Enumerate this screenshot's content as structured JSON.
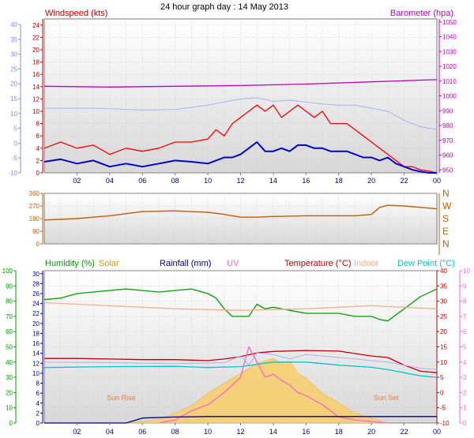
{
  "header": {
    "title": "24 hour graph day : 14 May 2013"
  },
  "chart_data": [
    {
      "type": "line",
      "panel": "wind",
      "x_ticks": [
        "02",
        "04",
        "06",
        "08",
        "10",
        "12",
        "14",
        "16",
        "18",
        "20",
        "22",
        "00"
      ],
      "xlim": [
        0,
        24
      ],
      "grid": true,
      "left_axis": {
        "label": "Windspeed (kts)",
        "ticks": [
          0,
          2,
          4,
          6,
          8,
          10,
          12,
          14,
          16,
          18,
          20,
          22,
          24
        ],
        "ylim": [
          0,
          25
        ]
      },
      "outer_left_axis": {
        "ticks": [
          -10,
          -5,
          0,
          5,
          10,
          15,
          20,
          25,
          30,
          35,
          40
        ]
      },
      "right_axis": {
        "label": "Barometer (hpa)",
        "ticks": [
          950,
          960,
          970,
          980,
          990,
          1000,
          1010,
          1020,
          1030,
          1040,
          1050
        ],
        "ylim": [
          948,
          1052
        ]
      },
      "series": [
        {
          "name": "Barometer (hpa)",
          "axis": "right",
          "color": "#c000c0",
          "x": [
            0,
            4,
            8,
            12,
            16,
            20,
            24
          ],
          "y": [
            1006.5,
            1006,
            1006.5,
            1007,
            1008,
            1009.5,
            1011
          ]
        },
        {
          "axis": "left",
          "color": "#a8b4f0",
          "style": "light",
          "x": [
            0,
            3,
            6,
            8,
            10,
            11,
            12,
            13,
            14,
            15,
            16,
            17,
            18,
            19,
            20,
            21,
            22,
            23,
            24
          ],
          "y": [
            10.5,
            10.5,
            10.2,
            10.3,
            11,
            11.5,
            12,
            12.2,
            11.6,
            11.8,
            11.5,
            11.2,
            11,
            11,
            10.5,
            10,
            8.5,
            7.5,
            7
          ]
        },
        {
          "axis": "left",
          "color": "#ff0000",
          "x": [
            0,
            1,
            2,
            3,
            4,
            5,
            6,
            7,
            8,
            9,
            10,
            10.5,
            11,
            11.5,
            12,
            12.5,
            13,
            13.5,
            14,
            14.5,
            15,
            15.5,
            16,
            16.5,
            17,
            17.5,
            18,
            18.5,
            19,
            19.5,
            20,
            20.5,
            21,
            21.5,
            22,
            22.5,
            23,
            23.5,
            24
          ],
          "y": [
            4,
            5,
            4,
            4.5,
            3,
            4,
            3.5,
            4,
            5,
            5,
            5.5,
            7,
            6,
            8,
            9,
            10,
            11,
            10,
            11,
            9,
            10,
            11,
            10,
            9,
            10,
            8,
            8,
            8,
            7,
            6,
            5,
            4,
            3,
            2,
            1,
            1,
            0.5,
            0.3,
            0
          ]
        },
        {
          "axis": "left",
          "color": "#0000cc",
          "x": [
            0,
            1,
            2,
            3,
            4,
            5,
            6,
            7,
            8,
            9,
            10,
            10.5,
            11,
            11.5,
            12,
            12.5,
            13,
            13.5,
            14,
            14.5,
            15,
            15.5,
            16,
            16.5,
            17,
            17.5,
            18,
            18.5,
            19,
            19.5,
            20,
            20.5,
            21,
            21.5,
            22,
            22.5,
            23,
            23.5,
            24
          ],
          "y": [
            1.8,
            2.2,
            1.5,
            2,
            1,
            1.5,
            1,
            1.5,
            2,
            1.8,
            1.5,
            2,
            2.5,
            2.5,
            3,
            4,
            5,
            3.5,
            3.5,
            4,
            3.5,
            4.5,
            4.5,
            4,
            4,
            3.5,
            3.5,
            3.5,
            3,
            2.5,
            2.5,
            2,
            2.5,
            1.5,
            1,
            0.5,
            0.2,
            0,
            0
          ]
        }
      ]
    },
    {
      "type": "line",
      "panel": "wind_direction",
      "xlim": [
        0,
        24
      ],
      "grid": true,
      "left_axis": {
        "ticks": [
          0,
          90,
          180,
          270,
          360
        ],
        "ylim": [
          0,
          360
        ]
      },
      "right_axis": {
        "ticks": [
          "N",
          "W",
          "S",
          "E",
          "N"
        ]
      },
      "series": [
        {
          "axis": "left",
          "color": "#c06000",
          "x": [
            0,
            2,
            4,
            6,
            8,
            10,
            11,
            12,
            13,
            14,
            16,
            18,
            19,
            20,
            20.5,
            21,
            22,
            24
          ],
          "y": [
            170,
            180,
            200,
            230,
            235,
            225,
            210,
            190,
            190,
            195,
            200,
            200,
            200,
            210,
            260,
            275,
            270,
            250
          ]
        }
      ]
    },
    {
      "type": "line",
      "panel": "environment",
      "x_ticks": [
        "02",
        "04",
        "06",
        "08",
        "10",
        "12",
        "14",
        "16",
        "18",
        "20",
        "22",
        "00"
      ],
      "xlim": [
        0,
        24
      ],
      "grid": true,
      "legend": [
        {
          "label": "Humidity (%)",
          "color": "#00a000"
        },
        {
          "label": "Solar",
          "color": "#c8a000"
        },
        {
          "label": "Rainfall (mm)",
          "color": "#000080"
        },
        {
          "label": "UV",
          "color": "#ff66cc"
        },
        {
          "label": "Temperature (°C)",
          "color": "#c00000"
        },
        {
          "label": "Indoor",
          "color": "#f0b090"
        },
        {
          "label": "Dew Point (°C)",
          "color": "#00c8c8"
        }
      ],
      "axes": {
        "humidity": {
          "ticks": [
            0,
            10,
            20,
            30,
            40,
            50,
            60,
            70,
            80,
            90,
            100
          ],
          "ylim": [
            0,
            100
          ]
        },
        "rainfall": {
          "ticks": [
            0,
            2,
            4,
            6,
            8,
            10,
            12,
            14,
            16,
            18,
            20,
            22,
            24,
            26,
            28,
            30
          ],
          "ylim": [
            0,
            30.6
          ]
        },
        "temperature": {
          "ticks": [
            -10,
            -5,
            0,
            5,
            10,
            15,
            20,
            25,
            30,
            35,
            40
          ],
          "ylim": [
            -10,
            40
          ]
        },
        "uv": {
          "ticks": [
            0,
            1,
            2,
            3,
            4,
            5,
            6,
            7,
            8,
            9,
            10
          ],
          "ylim": [
            0,
            10
          ]
        }
      },
      "annotations": [
        {
          "text": "Sun Rise",
          "x": 4.7
        },
        {
          "text": "Sun Set",
          "x": 20.9
        }
      ],
      "series": [
        {
          "name": "Solar",
          "axis": "rainfall",
          "color": "#f8d070",
          "kind": "area",
          "x": [
            4.7,
            6,
            7,
            8,
            9,
            10,
            11,
            11.5,
            12,
            13,
            14,
            14.5,
            15,
            15.5,
            16,
            17,
            18,
            18.5,
            19,
            19.5,
            20,
            20.5,
            20.9
          ],
          "y": [
            0,
            0.3,
            0.8,
            2,
            3.5,
            6,
            8,
            9,
            10,
            12,
            13,
            12,
            12.5,
            10,
            9,
            6,
            4,
            3,
            2,
            1.5,
            1,
            0.5,
            0
          ]
        },
        {
          "name": "Humidity (%)",
          "axis": "humidity",
          "color": "#00a000",
          "x": [
            0,
            1,
            2,
            3,
            4,
            5,
            6,
            7,
            8,
            9,
            10,
            10.5,
            11,
            11.5,
            12,
            12.5,
            13,
            13.5,
            14,
            15,
            16,
            17,
            18,
            19,
            20,
            20.5,
            21,
            22,
            23,
            24
          ],
          "y": [
            81,
            82,
            85,
            86,
            87,
            88,
            87,
            86,
            87,
            88,
            85,
            82,
            75,
            70,
            70,
            70,
            78,
            75,
            76,
            74,
            72,
            72,
            72,
            70,
            70,
            68,
            67,
            75,
            83,
            88
          ]
        },
        {
          "name": "Indoor",
          "axis": "temperature",
          "color": "#f0b090",
          "x": [
            0,
            4,
            8,
            12,
            16,
            20,
            24
          ],
          "y": [
            29.5,
            28.5,
            27.5,
            27,
            27.5,
            28.5,
            27.5
          ]
        },
        {
          "name": "Temperature (°C)",
          "axis": "temperature",
          "color": "#c00000",
          "x": [
            0,
            2,
            4,
            6,
            8,
            10,
            11,
            12,
            13,
            14,
            16,
            18,
            20,
            21,
            22,
            23,
            24
          ],
          "y": [
            11.2,
            11.2,
            11,
            10.8,
            10.8,
            10.5,
            11,
            11.8,
            13,
            13.5,
            13.8,
            13.6,
            12,
            11.5,
            9,
            7,
            6.5
          ]
        },
        {
          "axis": "temperature",
          "color": "#b0b0f0",
          "style": "light",
          "x": [
            0,
            4,
            8,
            11,
            12,
            12.5,
            13,
            14,
            15,
            16,
            17,
            18,
            19,
            20,
            21,
            22,
            23,
            24
          ],
          "y": [
            10,
            9.8,
            9.5,
            9.8,
            12,
            9,
            13,
            12.5,
            11,
            12.5,
            12,
            11.5,
            11,
            10.5,
            10,
            9,
            8,
            7.5
          ]
        },
        {
          "name": "Dew Point (°C)",
          "axis": "temperature",
          "color": "#00c8c8",
          "x": [
            0,
            4,
            8,
            10,
            12,
            14,
            16,
            18,
            20,
            21,
            22,
            23,
            24
          ],
          "y": [
            8.2,
            8.5,
            8.6,
            8.2,
            8.5,
            10,
            10,
            9,
            8.3,
            7.5,
            6.5,
            5.5,
            5
          ]
        },
        {
          "name": "UV",
          "axis": "uv",
          "color": "#ff66cc",
          "x": [
            7,
            8,
            9,
            10,
            11,
            12,
            12.5,
            13,
            13.5,
            14,
            14.5,
            15,
            15.5,
            16,
            17,
            18,
            19,
            20,
            21
          ],
          "y": [
            0,
            0.2,
            0.8,
            1.2,
            2,
            3,
            5,
            4,
            3,
            3.2,
            2.8,
            2.5,
            2,
            1.8,
            1.2,
            0.4,
            0.2,
            0.1,
            0
          ]
        },
        {
          "name": "Rainfall (mm)",
          "axis": "rainfall",
          "color": "#000080",
          "x": [
            0,
            5,
            6,
            8,
            10,
            12,
            14,
            16,
            18,
            20,
            22,
            24
          ],
          "y": [
            0,
            0,
            1,
            1.2,
            1.3,
            1.3,
            1.3,
            1.3,
            1.3,
            1.3,
            1.3,
            1.3
          ]
        }
      ]
    }
  ]
}
